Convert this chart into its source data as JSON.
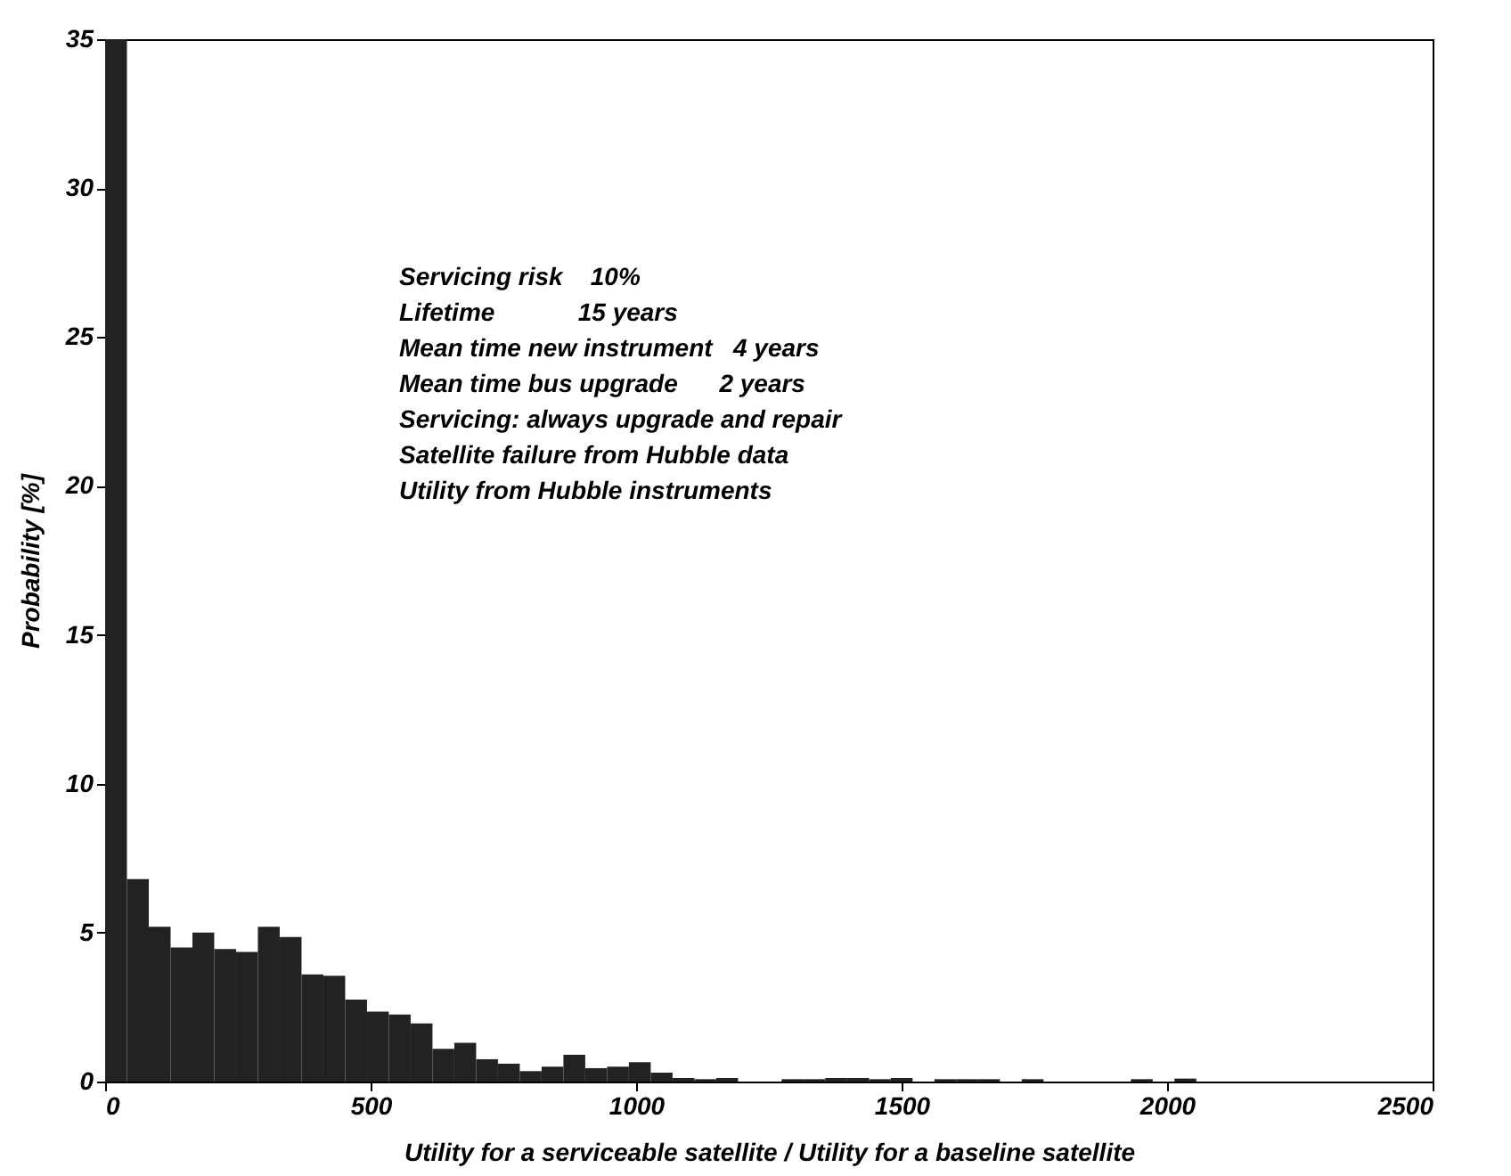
{
  "chart_data": {
    "type": "histogram",
    "xlabel": "Utility for a serviceable satellite / Utility for a baseline satellite",
    "ylabel": "Probability [%]",
    "bins": [
      0,
      41.1,
      82.2,
      123.3,
      164.4,
      205.5,
      246.6,
      287.7,
      328.8,
      369.9,
      411,
      452.1,
      493.2,
      534.3,
      575.4,
      616.5,
      657.6,
      698.7,
      739.8,
      780.9,
      822,
      863.1,
      904.2,
      945.3,
      986.4,
      1027.5,
      1068.6,
      1109.7,
      1150.8,
      1191.9,
      1233,
      1274.1,
      1315.2,
      1356.3,
      1397.4,
      1438.5,
      1479.6,
      1520.7,
      1561.8,
      1602.9,
      1644,
      1685.1,
      1726.2,
      1767.3,
      1808.4,
      1849.5,
      1890.6,
      1931.7,
      1972.8,
      2013.9,
      2055
    ],
    "values": [
      35,
      6.8,
      5.2,
      4.5,
      5.0,
      4.45,
      4.35,
      5.2,
      4.85,
      3.6,
      3.55,
      2.75,
      2.35,
      2.25,
      1.95,
      1.1,
      1.3,
      0.75,
      0.6,
      0.35,
      0.5,
      0.9,
      0.45,
      0.5,
      0.65,
      0.3,
      0.12,
      0.08,
      0.12,
      0,
      0,
      0.08,
      0.08,
      0.12,
      0.12,
      0.08,
      0.12,
      0,
      0.08,
      0.08,
      0.08,
      0,
      0.08,
      0,
      0,
      0,
      0,
      0.08,
      0,
      0.1
    ],
    "color": "#222222",
    "xlim": [
      0,
      2500
    ],
    "xticks": [
      0,
      500,
      1000,
      1500,
      2000,
      2500
    ],
    "ylim": [
      0,
      35
    ],
    "yticks": [
      0,
      5,
      10,
      15,
      20,
      25,
      30,
      35
    ],
    "grid": false,
    "annotations": [
      "Servicing risk    10%",
      "Lifetime            15 years",
      "Mean time new instrument   4 years",
      "Mean time bus upgrade      2 years",
      "Servicing: always upgrade and repair",
      "Satellite failure from Hubble data",
      "Utility from Hubble instruments"
    ]
  }
}
